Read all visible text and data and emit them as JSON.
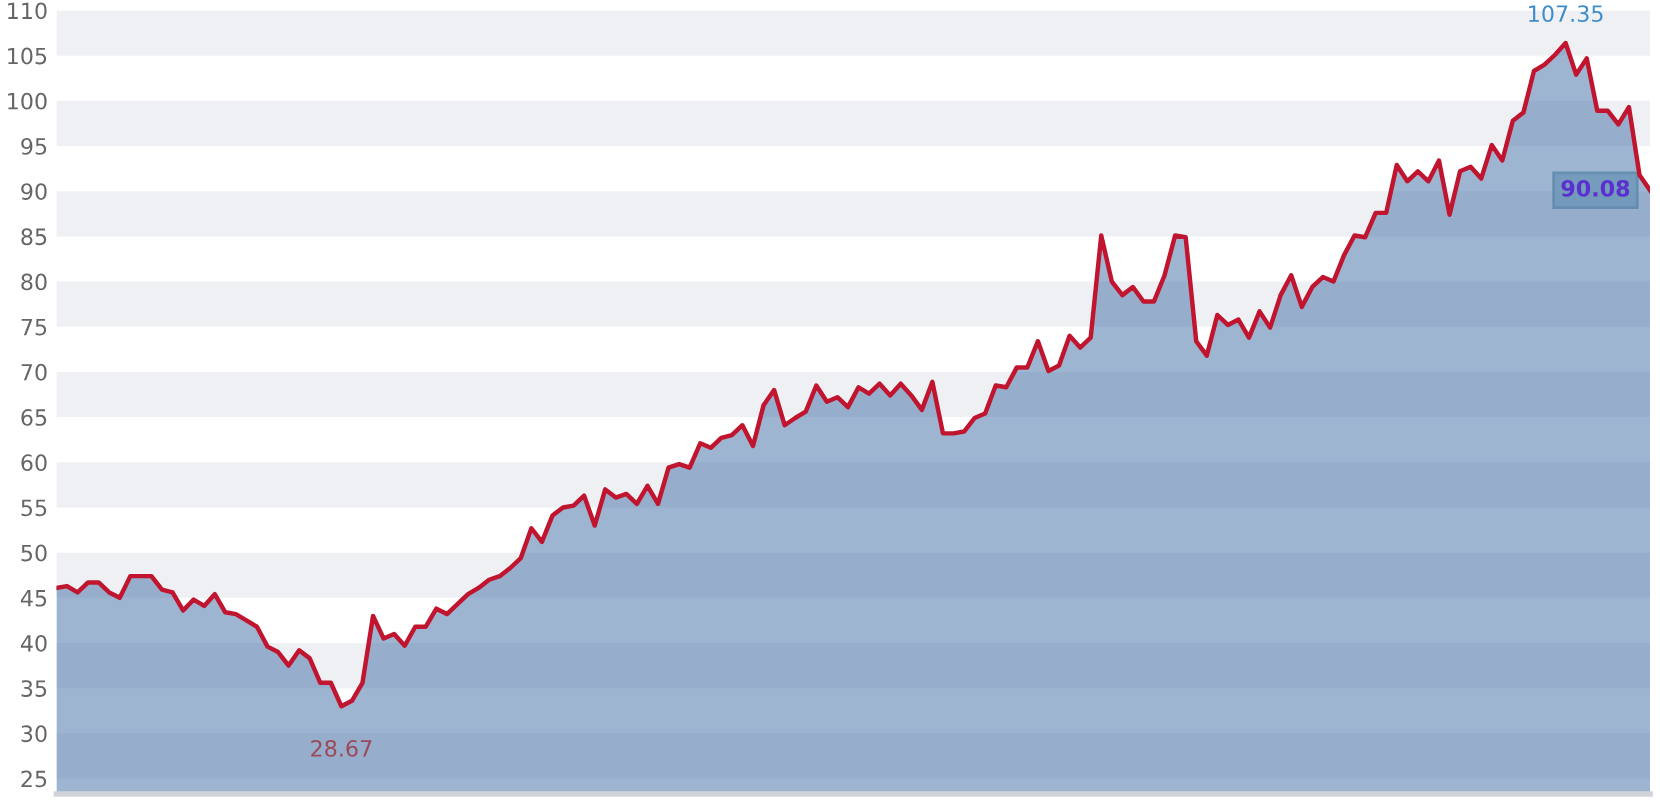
{
  "chart_data": {
    "type": "area",
    "ylim": [
      23.3,
      110
    ],
    "yticks": [
      25,
      30,
      35,
      40,
      45,
      50,
      55,
      60,
      65,
      70,
      75,
      80,
      85,
      90,
      95,
      100,
      105,
      110
    ],
    "tick_labels": "y",
    "bands": [
      {
        "axis": "y",
        "from": 25,
        "to": 30,
        "color": "#eef0f3"
      },
      {
        "axis": "y",
        "from": 35,
        "to": 40,
        "color": "#eef0f3"
      },
      {
        "axis": "y",
        "from": 45,
        "to": 50,
        "color": "#eef0f3"
      },
      {
        "axis": "y",
        "from": 55,
        "to": 60,
        "color": "#eef0f3"
      },
      {
        "axis": "y",
        "from": 65,
        "to": 70,
        "color": "#eef0f3"
      },
      {
        "axis": "y",
        "from": 75,
        "to": 80,
        "color": "#eef0f3"
      },
      {
        "axis": "y",
        "from": 85,
        "to": 90,
        "color": "#eef0f3"
      },
      {
        "axis": "y",
        "from": 95,
        "to": 100,
        "color": "#eef0f3"
      },
      {
        "axis": "y",
        "from": 105,
        "to": 110,
        "color": "#eef0f3"
      }
    ],
    "categories": [
      null,
      null,
      null,
      null,
      null,
      null,
      null,
      null,
      null,
      null,
      null,
      null,
      null,
      null,
      null,
      null,
      null,
      null,
      null,
      null,
      null,
      null,
      null,
      null,
      null,
      null,
      null,
      null,
      null,
      null,
      null,
      null,
      null,
      null,
      null,
      null,
      null,
      null,
      null,
      null,
      null,
      null,
      null,
      null,
      null,
      null,
      null,
      null,
      null,
      null,
      null,
      null,
      null,
      null,
      null,
      null,
      null,
      null,
      null,
      null,
      null,
      null,
      null,
      null,
      null,
      null,
      null,
      null,
      null,
      null,
      null,
      null,
      null,
      null,
      null,
      null,
      null,
      null,
      null,
      null,
      null,
      null,
      null,
      null,
      null,
      null,
      null,
      null,
      null,
      null,
      null,
      null,
      null,
      null,
      null,
      null,
      null,
      null,
      null,
      null,
      null,
      null,
      null,
      null,
      null,
      null,
      null,
      null,
      null,
      null,
      null,
      null,
      null,
      null,
      null,
      null,
      null,
      null,
      null,
      null,
      null,
      null,
      null,
      null,
      null,
      null,
      null,
      null,
      null,
      null,
      null,
      null,
      null,
      null,
      null,
      null,
      null,
      null,
      null,
      null,
      null,
      null,
      null,
      null,
      null,
      null,
      null,
      null,
      null,
      null,
      null,
      null
    ],
    "series": [
      {
        "color": "#4f78ab",
        "values": [
          46.1,
          46.3,
          45.6,
          46.7,
          46.7,
          45.6,
          45.0,
          47.4,
          47.4,
          47.4,
          45.9,
          45.6,
          43.6,
          44.8,
          44.1,
          45.4,
          43.4,
          43.2,
          42.5,
          41.8,
          39.6,
          39.0,
          37.5,
          39.2,
          38.3,
          35.6,
          35.6,
          33.0,
          33.6,
          35.6,
          43.0,
          40.5,
          41.0,
          39.7,
          41.8,
          41.8,
          43.8,
          43.2,
          44.3,
          45.4,
          46.1,
          47.0,
          47.4,
          48.3,
          49.4,
          52.7,
          51.2,
          54.1,
          55.0,
          55.2,
          56.3,
          53.0,
          57.0,
          56.1,
          56.5,
          55.4,
          57.4,
          55.4,
          59.4,
          59.8,
          59.4,
          62.1,
          61.6,
          62.7,
          63.0,
          64.1,
          61.8,
          66.3,
          68.0,
          64.1,
          64.9,
          65.6,
          68.5,
          66.7,
          67.2,
          66.1,
          68.3,
          67.6,
          68.7,
          67.4,
          68.7,
          67.4,
          65.8,
          68.9,
          63.2,
          63.2,
          63.4,
          64.9,
          65.4,
          68.5,
          68.3,
          70.5,
          70.5,
          73.4,
          70.1,
          70.7,
          74.0,
          72.7,
          73.8,
          85.1,
          80.0,
          78.5,
          79.4,
          77.8,
          77.8,
          80.7,
          85.1,
          84.9,
          73.4,
          71.8,
          76.3,
          75.2,
          75.8,
          73.8,
          76.7,
          74.9,
          78.5,
          80.7,
          77.2,
          79.4,
          80.5,
          80.0,
          82.9,
          85.1,
          84.9,
          87.6,
          87.6,
          92.9,
          91.1,
          92.2,
          91.1,
          93.4,
          87.4,
          92.2,
          92.7,
          91.4,
          95.1,
          93.4,
          97.8,
          98.7,
          103.3,
          104.0,
          105.1,
          106.4,
          102.9,
          104.7,
          98.9,
          98.9,
          97.4,
          99.3,
          91.8,
          90.1
        ]
      },
      {
        "type": "line",
        "color": "#c0142f",
        "values": [
          46.1,
          46.3,
          45.6,
          46.7,
          46.7,
          45.6,
          45.0,
          47.4,
          47.4,
          47.4,
          45.9,
          45.6,
          43.6,
          44.8,
          44.1,
          45.4,
          43.4,
          43.2,
          42.5,
          41.8,
          39.6,
          39.0,
          37.5,
          39.2,
          38.3,
          35.6,
          35.6,
          33.0,
          33.6,
          35.6,
          43.0,
          40.5,
          41.0,
          39.7,
          41.8,
          41.8,
          43.8,
          43.2,
          44.3,
          45.4,
          46.1,
          47.0,
          47.4,
          48.3,
          49.4,
          52.7,
          51.2,
          54.1,
          55.0,
          55.2,
          56.3,
          53.0,
          57.0,
          56.1,
          56.5,
          55.4,
          57.4,
          55.4,
          59.4,
          59.8,
          59.4,
          62.1,
          61.6,
          62.7,
          63.0,
          64.1,
          61.8,
          66.3,
          68.0,
          64.1,
          64.9,
          65.6,
          68.5,
          66.7,
          67.2,
          66.1,
          68.3,
          67.6,
          68.7,
          67.4,
          68.7,
          67.4,
          65.8,
          68.9,
          63.2,
          63.2,
          63.4,
          64.9,
          65.4,
          68.5,
          68.3,
          70.5,
          70.5,
          73.4,
          70.1,
          70.7,
          74.0,
          72.7,
          73.8,
          85.1,
          80.0,
          78.5,
          79.4,
          77.8,
          77.8,
          80.7,
          85.1,
          84.9,
          73.4,
          71.8,
          76.3,
          75.2,
          75.8,
          73.8,
          76.7,
          74.9,
          78.5,
          80.7,
          77.2,
          79.4,
          80.5,
          80.0,
          82.9,
          85.1,
          84.9,
          87.6,
          87.6,
          92.9,
          91.1,
          92.2,
          91.1,
          93.4,
          87.4,
          92.2,
          92.7,
          91.4,
          95.1,
          93.4,
          97.8,
          98.7,
          103.3,
          104.0,
          105.1,
          106.4,
          102.9,
          104.7,
          98.9,
          98.9,
          97.4,
          99.3,
          91.8,
          90.1
        ]
      }
    ],
    "annotations": [
      "28.67",
      "107.35",
      "90.08"
    ]
  }
}
